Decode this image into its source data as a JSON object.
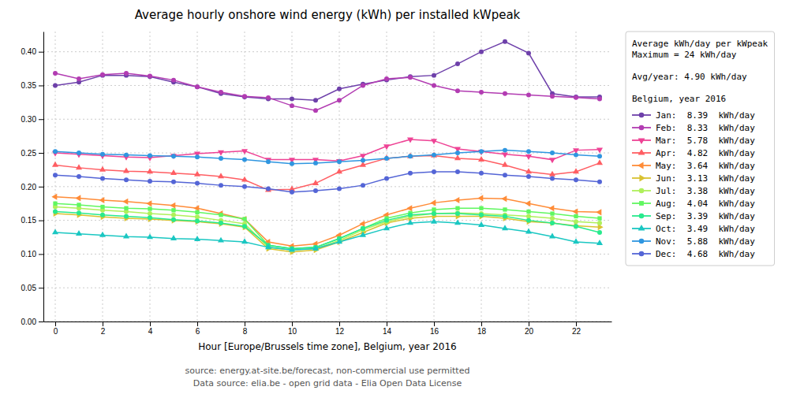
{
  "chart_data": {
    "type": "line",
    "title": "Average hourly onshore wind energy (kWh) per installed kWpeak",
    "xlabel": "Hour [Europe/Brussels time zone], Belgium, year 2016",
    "annotations": [
      "source: energy.at-site.be/forecast, non-commercial use permitted",
      "Data source: elia.be - open grid data - Elia Open Data License"
    ],
    "legend_title": "Average kWh/day per kWpeak\nMaximum = 24 kWh/day\n\nAvg/year: 4.90 kWh/day\n\nBelgium, year 2016",
    "legend": "right",
    "grid": true,
    "x": [
      0,
      1,
      2,
      3,
      4,
      5,
      6,
      7,
      8,
      9,
      10,
      11,
      12,
      13,
      14,
      15,
      16,
      17,
      18,
      19,
      20,
      21,
      22,
      23
    ],
    "xlim": [
      -0.5,
      23.5
    ],
    "xticks": [
      0,
      2,
      4,
      6,
      8,
      10,
      12,
      14,
      16,
      18,
      20,
      22
    ],
    "ylim": [
      0.0,
      0.43
    ],
    "yticks": [
      {
        "value": 0.0,
        "label": "0.00"
      },
      0.05,
      {
        "value": 0.1,
        "label": "0.10"
      },
      0.15,
      {
        "value": 0.2,
        "label": "0.20"
      },
      0.25,
      {
        "value": 0.3,
        "label": "0.30"
      },
      0.35,
      {
        "value": 0.4,
        "label": "0.40"
      }
    ],
    "series": [
      {
        "name": "Jan:  8.39  kWh/day",
        "marker": "circle",
        "values": [
          0.35,
          0.355,
          0.365,
          0.365,
          0.363,
          0.355,
          0.348,
          0.338,
          0.333,
          0.33,
          0.33,
          0.328,
          0.345,
          0.352,
          0.358,
          0.363,
          0.365,
          0.382,
          0.4,
          0.415,
          0.398,
          0.338,
          0.333,
          0.333
        ]
      },
      {
        "name": "Feb:  8.33  kWh/day",
        "marker": "circle",
        "values": [
          0.368,
          0.36,
          0.366,
          0.368,
          0.364,
          0.358,
          0.348,
          0.34,
          0.334,
          0.332,
          0.32,
          0.313,
          0.328,
          0.35,
          0.36,
          0.362,
          0.35,
          0.342,
          0.34,
          0.338,
          0.336,
          0.334,
          0.332,
          0.33
        ]
      },
      {
        "name": "Mar:  5.78  kWh/day",
        "marker": "triangle-down",
        "values": [
          0.25,
          0.248,
          0.246,
          0.244,
          0.243,
          0.246,
          0.249,
          0.251,
          0.253,
          0.24,
          0.24,
          0.24,
          0.238,
          0.246,
          0.26,
          0.27,
          0.268,
          0.256,
          0.252,
          0.248,
          0.245,
          0.24,
          0.254,
          0.255
        ]
      },
      {
        "name": "Apr:  4.82  kWh/day",
        "marker": "triangle-up",
        "values": [
          0.232,
          0.228,
          0.225,
          0.223,
          0.222,
          0.22,
          0.218,
          0.215,
          0.21,
          0.195,
          0.196,
          0.205,
          0.222,
          0.232,
          0.242,
          0.245,
          0.246,
          0.242,
          0.24,
          0.232,
          0.222,
          0.218,
          0.222,
          0.235
        ]
      },
      {
        "name": "May:  3.64  kWh/day",
        "marker": "triangle-left",
        "values": [
          0.185,
          0.183,
          0.18,
          0.178,
          0.175,
          0.172,
          0.168,
          0.16,
          0.152,
          0.118,
          0.112,
          0.115,
          0.128,
          0.145,
          0.158,
          0.168,
          0.176,
          0.18,
          0.183,
          0.182,
          0.175,
          0.168,
          0.163,
          0.162
        ]
      },
      {
        "name": "Jun:  3.13  kWh/day",
        "marker": "triangle-right",
        "values": [
          0.16,
          0.158,
          0.155,
          0.153,
          0.152,
          0.15,
          0.148,
          0.145,
          0.14,
          0.108,
          0.103,
          0.106,
          0.118,
          0.132,
          0.146,
          0.153,
          0.156,
          0.156,
          0.156,
          0.153,
          0.148,
          0.146,
          0.142,
          0.14
        ]
      },
      {
        "name": "Jul:  3.38  kWh/day",
        "marker": "circle",
        "values": [
          0.17,
          0.168,
          0.165,
          0.163,
          0.16,
          0.158,
          0.155,
          0.15,
          0.145,
          0.11,
          0.106,
          0.108,
          0.12,
          0.136,
          0.148,
          0.156,
          0.16,
          0.161,
          0.16,
          0.158,
          0.156,
          0.153,
          0.148,
          0.146
        ]
      },
      {
        "name": "Aug:  4.04  kWh/day",
        "marker": "square",
        "values": [
          0.175,
          0.173,
          0.17,
          0.168,
          0.167,
          0.165,
          0.162,
          0.158,
          0.152,
          0.113,
          0.108,
          0.11,
          0.123,
          0.138,
          0.153,
          0.161,
          0.166,
          0.168,
          0.168,
          0.166,
          0.163,
          0.16,
          0.156,
          0.153
        ]
      },
      {
        "name": "Sep:  3.39  kWh/day",
        "marker": "circle",
        "values": [
          0.163,
          0.161,
          0.158,
          0.156,
          0.154,
          0.151,
          0.149,
          0.146,
          0.141,
          0.113,
          0.108,
          0.11,
          0.123,
          0.138,
          0.15,
          0.158,
          0.16,
          0.16,
          0.158,
          0.156,
          0.15,
          0.146,
          0.141,
          0.132
        ]
      },
      {
        "name": "Oct:  3.49  kWh/day",
        "marker": "triangle-up",
        "values": [
          0.132,
          0.13,
          0.128,
          0.126,
          0.125,
          0.123,
          0.122,
          0.12,
          0.118,
          0.11,
          0.106,
          0.108,
          0.118,
          0.128,
          0.138,
          0.146,
          0.148,
          0.146,
          0.143,
          0.138,
          0.133,
          0.126,
          0.118,
          0.116
        ]
      },
      {
        "name": "Nov:  5.88  kWh/day",
        "marker": "circle",
        "values": [
          0.252,
          0.25,
          0.248,
          0.247,
          0.246,
          0.245,
          0.244,
          0.242,
          0.24,
          0.237,
          0.234,
          0.235,
          0.237,
          0.239,
          0.242,
          0.245,
          0.247,
          0.25,
          0.252,
          0.254,
          0.252,
          0.25,
          0.247,
          0.245
        ]
      },
      {
        "name": "Dec:  4.68  kWh/day",
        "marker": "circle",
        "values": [
          0.217,
          0.215,
          0.212,
          0.21,
          0.208,
          0.207,
          0.205,
          0.202,
          0.2,
          0.197,
          0.192,
          0.194,
          0.197,
          0.202,
          0.212,
          0.22,
          0.222,
          0.222,
          0.22,
          0.217,
          0.215,
          0.212,
          0.21,
          0.207
        ]
      }
    ]
  }
}
